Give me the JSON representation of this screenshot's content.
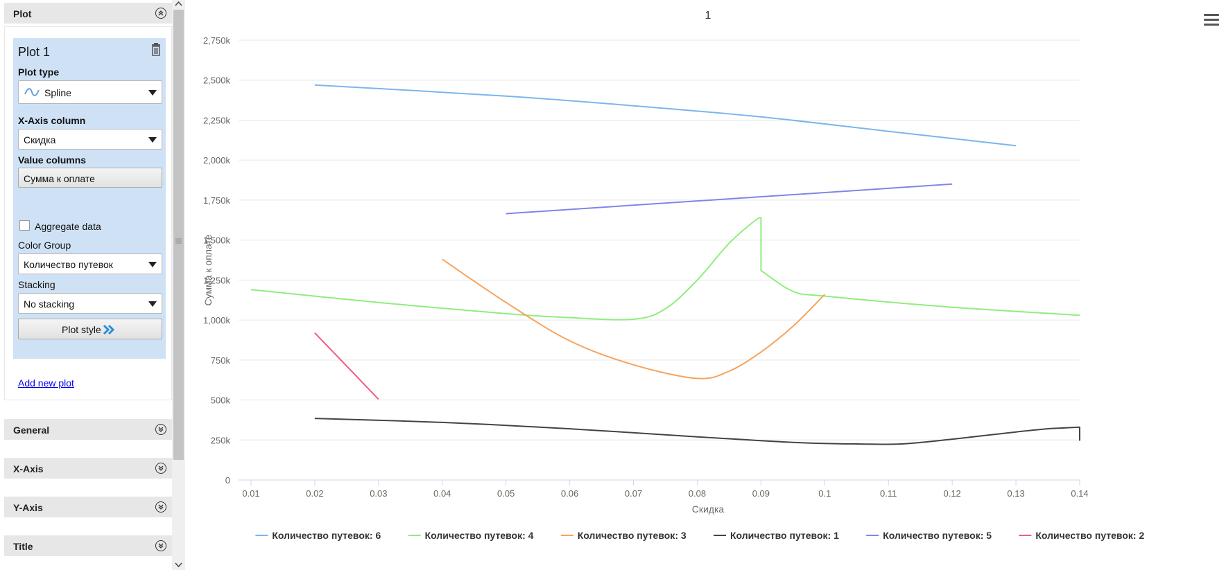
{
  "panel": {
    "sections": {
      "plot": "Plot",
      "general": "General",
      "x_axis": "X-Axis",
      "y_axis": "Y-Axis",
      "title": "Title"
    },
    "plot_card": {
      "title": "Plot 1",
      "plot_type_label": "Plot type",
      "plot_type_value": "Spline",
      "x_axis_label": "X-Axis column",
      "x_axis_value": "Скидка",
      "value_columns_label": "Value columns",
      "value_columns_value": "Сумма к оплате",
      "aggregate_label": "Aggregate data",
      "aggregate_checked": false,
      "color_group_label": "Color Group",
      "color_group_value": "Количество путевок",
      "stacking_label": "Stacking",
      "stacking_value": "No stacking",
      "plot_style_label": "Plot style"
    },
    "add_plot": "Add new plot"
  },
  "chart_data": {
    "type": "line",
    "title": "1",
    "xlabel": "Скидка",
    "ylabel": "Сумма к оплате",
    "xlim": [
      0.01,
      0.14
    ],
    "ylim": [
      0,
      2750000
    ],
    "x_ticks": [
      "0.01",
      "0.02",
      "0.03",
      "0.04",
      "0.05",
      "0.06",
      "0.07",
      "0.08",
      "0.09",
      "0.1",
      "0.11",
      "0.12",
      "0.13",
      "0.14"
    ],
    "x_tick_values": [
      0.01,
      0.02,
      0.03,
      0.04,
      0.05,
      0.06,
      0.07,
      0.08,
      0.09,
      0.1,
      0.11,
      0.12,
      0.13,
      0.14
    ],
    "y_ticks": [
      "0",
      "250k",
      "500k",
      "750k",
      "1,000k",
      "1,250k",
      "1,500k",
      "1,750k",
      "2,000k",
      "2,250k",
      "2,500k",
      "2,750k"
    ],
    "y_tick_values": [
      0,
      250000,
      500000,
      750000,
      1000000,
      1250000,
      1500000,
      1750000,
      2000000,
      2250000,
      2500000,
      2750000
    ],
    "grid": true,
    "legend_position": "bottom",
    "series": [
      {
        "name": "Количество путевок: 6",
        "color": "#7cb5ec",
        "points": [
          [
            0.02,
            2470000
          ],
          [
            0.05,
            2400000
          ],
          [
            0.07,
            2340000
          ],
          [
            0.09,
            2270000
          ],
          [
            0.11,
            2180000
          ],
          [
            0.13,
            2090000
          ]
        ]
      },
      {
        "name": "Количество путевок: 4",
        "color": "#90ed7d",
        "points": [
          [
            0.01,
            1190000
          ],
          [
            0.03,
            1110000
          ],
          [
            0.05,
            1040000
          ],
          [
            0.06,
            1015000
          ],
          [
            0.07,
            1005000
          ],
          [
            0.075,
            1070000
          ],
          [
            0.08,
            1250000
          ],
          [
            0.085,
            1480000
          ],
          [
            0.089,
            1620000
          ],
          [
            0.09,
            1640000
          ],
          [
            0.09,
            1310000
          ],
          [
            0.095,
            1180000
          ],
          [
            0.1,
            1150000
          ],
          [
            0.12,
            1080000
          ],
          [
            0.14,
            1030000
          ]
        ]
      },
      {
        "name": "Количество путевок: 3",
        "color": "#f7a35c",
        "points": [
          [
            0.04,
            1380000
          ],
          [
            0.05,
            1110000
          ],
          [
            0.06,
            870000
          ],
          [
            0.07,
            720000
          ],
          [
            0.08,
            635000
          ],
          [
            0.085,
            680000
          ],
          [
            0.09,
            800000
          ],
          [
            0.095,
            960000
          ],
          [
            0.1,
            1160000
          ]
        ]
      },
      {
        "name": "Количество путевок: 1",
        "color": "#434348",
        "points": [
          [
            0.02,
            385000
          ],
          [
            0.04,
            360000
          ],
          [
            0.06,
            320000
          ],
          [
            0.08,
            270000
          ],
          [
            0.095,
            235000
          ],
          [
            0.105,
            225000
          ],
          [
            0.112,
            225000
          ],
          [
            0.12,
            255000
          ],
          [
            0.13,
            300000
          ],
          [
            0.135,
            320000
          ],
          [
            0.14,
            330000
          ],
          [
            0.14,
            245000
          ]
        ]
      },
      {
        "name": "Количество путевок: 5",
        "color": "#8085e9",
        "points": [
          [
            0.05,
            1665000
          ],
          [
            0.12,
            1850000
          ]
        ]
      },
      {
        "name": "Количество путевок: 2",
        "color": "#f15c80",
        "points": [
          [
            0.02,
            920000
          ],
          [
            0.03,
            505000
          ]
        ]
      }
    ]
  }
}
